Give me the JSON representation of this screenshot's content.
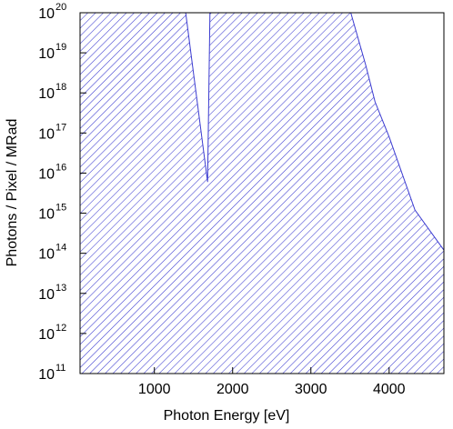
{
  "chart_data": {
    "type": "area",
    "x_label": "Photon Energy [eV]",
    "y_label": "Photons / Pixel / MRad",
    "x": [
      50,
      1400,
      1680,
      1710,
      3510,
      3700,
      3820,
      4000,
      4330,
      4700
    ],
    "values": [
      1e+20,
      1e+20,
      6000000000000000.0,
      1e+20,
      1e+20,
      5e+18,
      6e+17,
      8e+16,
      1200000000000000.0,
      120000000000000.0
    ],
    "color": "#3b3bd0",
    "fill": "hatch",
    "log_y": true,
    "xlim": [
      50,
      4700
    ],
    "ylim": [
      100000000000.0,
      1e+20
    ],
    "xticks": [
      1000,
      2000,
      3000,
      4000
    ],
    "yticks": [
      {
        "value": 100000000000.0,
        "label": "10",
        "exponent": "11"
      },
      {
        "value": 1000000000000.0,
        "label": "10",
        "exponent": "12"
      },
      {
        "value": 10000000000000.0,
        "label": "10",
        "exponent": "13"
      },
      {
        "value": 100000000000000.0,
        "label": "10",
        "exponent": "14"
      },
      {
        "value": 1000000000000000.0,
        "label": "10",
        "exponent": "15"
      },
      {
        "value": 1e+16,
        "label": "10",
        "exponent": "16"
      },
      {
        "value": 1e+17,
        "label": "10",
        "exponent": "17"
      },
      {
        "value": 1e+18,
        "label": "10",
        "exponent": "18"
      },
      {
        "value": 1e+19,
        "label": "10",
        "exponent": "19"
      },
      {
        "value": 1e+20,
        "label": "10",
        "exponent": "20"
      }
    ]
  }
}
